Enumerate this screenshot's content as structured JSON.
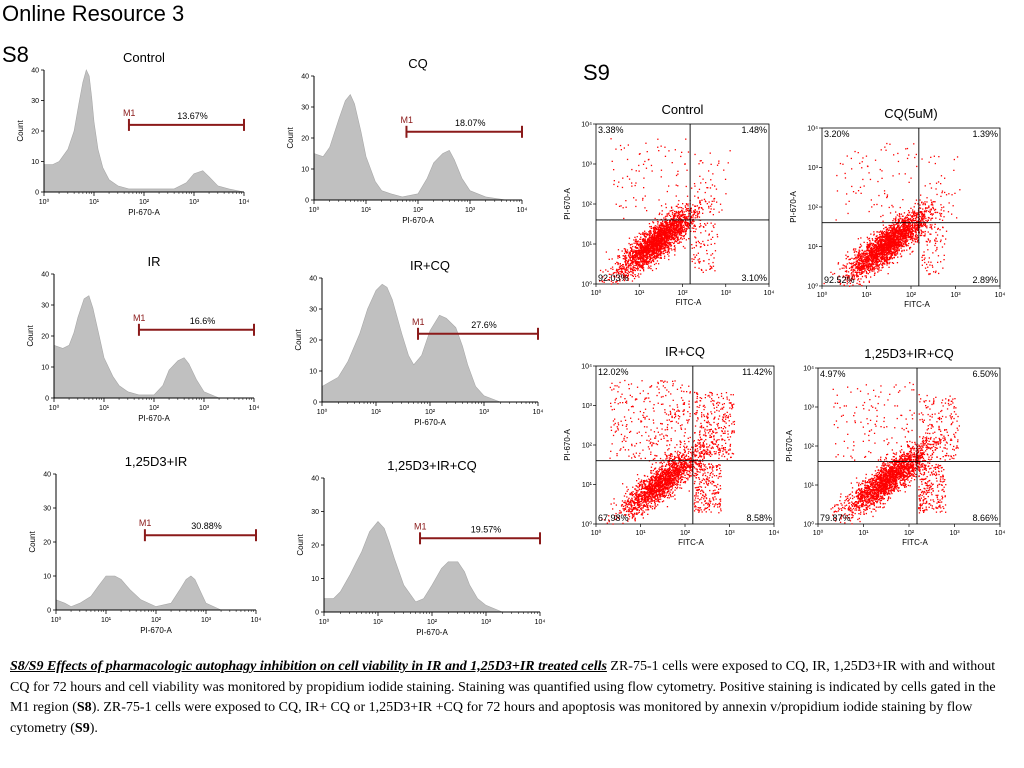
{
  "page": {
    "title": "Online Resource 3",
    "s8_label": "S8",
    "s9_label": "S9"
  },
  "colors": {
    "histogram_fill": "#c0c0c0",
    "marker": "#8b1a1a",
    "dots": "#ff0000",
    "quadrant_line": "#000000",
    "text": "#000000"
  },
  "caption": {
    "lead_label": "S8/S9",
    "lead_title": "Effects of pharmacologic autophagy inhibition on cell viability in IR and 1,25D3+IR treated cells",
    "part1": "ZR-75-1 cells were exposed to CQ,  IR, 1,25D3+IR with and without CQ for 72 hours and cell viability was monitored by propidium iodide staining. Staining was quantified using flow cytometry. Positive staining is indicated by cells gated in the M1 region (",
    "ref1": "S8",
    "part2": "). ZR-75-1 cells were exposed to CQ,  IR+ CQ or 1,25D3+IR +CQ for 72 hours and apoptosis was monitored by annexin v/propidium iodide staining by flow cytometry (",
    "ref2": "S9",
    "part3": ")."
  },
  "chart_data": [
    {
      "type": "area",
      "panel": "S8",
      "title": "Control",
      "xlabel": "PI-670-A",
      "ylabel": "Count",
      "x_scale": "log",
      "xlim": [
        1,
        10000
      ],
      "ylim": [
        0,
        40
      ],
      "xticks": [
        "10⁰",
        "10¹",
        "10²",
        "10³",
        "10⁴"
      ],
      "yticks": [
        "0",
        "10",
        "20",
        "30",
        "40"
      ],
      "marker": {
        "label": "M1",
        "percent": "13.67%",
        "x_range": [
          50,
          10000
        ]
      },
      "x": [
        1,
        1.5,
        2,
        3,
        4,
        5,
        6,
        7,
        8,
        9,
        10,
        12,
        15,
        20,
        30,
        50,
        100,
        200,
        400,
        700,
        1000,
        1500,
        2000,
        3000,
        5000,
        10000
      ],
      "y": [
        9,
        9,
        10,
        14,
        20,
        29,
        36,
        40,
        38,
        31,
        23,
        14,
        8,
        4,
        2,
        1,
        1,
        1,
        1,
        3,
        6,
        7,
        5,
        2,
        1,
        0
      ]
    },
    {
      "type": "area",
      "panel": "S8",
      "title": "CQ",
      "xlabel": "PI-670-A",
      "ylabel": "Count",
      "x_scale": "log",
      "xlim": [
        1,
        10000
      ],
      "ylim": [
        0,
        40
      ],
      "xticks": [
        "10⁰",
        "10¹",
        "10²",
        "10³",
        "10⁴"
      ],
      "yticks": [
        "0",
        "10",
        "20",
        "30",
        "40"
      ],
      "marker": {
        "label": "M1",
        "percent": "18.07%",
        "x_range": [
          60,
          10000
        ]
      },
      "x": [
        1,
        1.5,
        2,
        3,
        4,
        5,
        6,
        8,
        10,
        15,
        20,
        30,
        50,
        100,
        150,
        200,
        300,
        400,
        500,
        700,
        1000,
        2000,
        5000,
        10000
      ],
      "y": [
        15,
        14,
        17,
        26,
        32,
        34,
        31,
        22,
        14,
        6,
        3,
        2,
        1,
        2,
        7,
        12,
        15,
        16,
        13,
        7,
        3,
        1,
        0,
        0
      ]
    },
    {
      "type": "area",
      "panel": "S8",
      "title": "IR",
      "xlabel": "PI-670-A",
      "ylabel": "Count",
      "x_scale": "log",
      "xlim": [
        1,
        10000
      ],
      "ylim": [
        0,
        40
      ],
      "xticks": [
        "10⁰",
        "10¹",
        "10²",
        "10³",
        "10⁴"
      ],
      "yticks": [
        "0",
        "10",
        "20",
        "30",
        "40"
      ],
      "marker": {
        "label": "M1",
        "percent": "16.6%",
        "x_range": [
          50,
          10000
        ]
      },
      "x": [
        1,
        1.5,
        2,
        2.5,
        3,
        4,
        5,
        6,
        8,
        10,
        15,
        20,
        30,
        50,
        100,
        150,
        200,
        300,
        400,
        500,
        700,
        1000,
        2000,
        10000
      ],
      "y": [
        17,
        16,
        17,
        21,
        26,
        32,
        33,
        29,
        20,
        13,
        7,
        4,
        2,
        1,
        1,
        4,
        9,
        12,
        13,
        11,
        6,
        2,
        0,
        0
      ]
    },
    {
      "type": "area",
      "panel": "S8",
      "title": "IR+CQ",
      "xlabel": "PI-670-A",
      "ylabel": "Count",
      "x_scale": "log",
      "xlim": [
        1,
        10000
      ],
      "ylim": [
        0,
        40
      ],
      "xticks": [
        "10⁰",
        "10¹",
        "10²",
        "10³",
        "10⁴"
      ],
      "yticks": [
        "0",
        "10",
        "20",
        "30",
        "40"
      ],
      "marker": {
        "label": "M1",
        "percent": "27.6%",
        "x_range": [
          60,
          10000
        ]
      },
      "x": [
        1,
        2,
        3,
        5,
        7,
        10,
        13,
        16,
        20,
        30,
        40,
        50,
        70,
        100,
        150,
        200,
        300,
        400,
        500,
        700,
        1000,
        2000,
        10000
      ],
      "y": [
        5,
        8,
        13,
        22,
        30,
        36,
        38,
        37,
        33,
        22,
        15,
        12,
        15,
        23,
        28,
        27,
        24,
        18,
        12,
        5,
        2,
        0,
        0
      ]
    },
    {
      "type": "area",
      "panel": "S8",
      "title": "1,25D3+IR",
      "xlabel": "PI-670-A",
      "ylabel": "Count",
      "x_scale": "log",
      "xlim": [
        1,
        10000
      ],
      "ylim": [
        0,
        40
      ],
      "xticks": [
        "10⁰",
        "10¹",
        "10²",
        "10³",
        "10⁴"
      ],
      "yticks": [
        "0",
        "10",
        "20",
        "30",
        "40"
      ],
      "marker": {
        "label": "M1",
        "percent": "30.88%",
        "x_range": [
          60,
          10000
        ]
      },
      "x": [
        1,
        1.5,
        2,
        3,
        5,
        7,
        10,
        15,
        20,
        30,
        50,
        100,
        200,
        300,
        400,
        500,
        600,
        800,
        1000,
        2000,
        10000
      ],
      "y": [
        3,
        2,
        1,
        2,
        4,
        7,
        10,
        10,
        9,
        6,
        3,
        1,
        2,
        6,
        9,
        10,
        9,
        5,
        2,
        0,
        0
      ]
    },
    {
      "type": "area",
      "panel": "S8",
      "title": "1,25D3+IR+CQ",
      "xlabel": "PI-670-A",
      "ylabel": "Count",
      "x_scale": "log",
      "xlim": [
        1,
        10000
      ],
      "ylim": [
        0,
        40
      ],
      "xticks": [
        "10⁰",
        "10¹",
        "10²",
        "10³",
        "10⁴"
      ],
      "yticks": [
        "0",
        "10",
        "20",
        "30",
        "40"
      ],
      "marker": {
        "label": "M1",
        "percent": "19.57%",
        "x_range": [
          60,
          10000
        ]
      },
      "x": [
        1,
        1.5,
        2,
        3,
        4,
        5,
        7,
        10,
        13,
        16,
        20,
        30,
        50,
        70,
        100,
        150,
        200,
        300,
        400,
        500,
        700,
        1000,
        2000,
        10000
      ],
      "y": [
        4,
        4,
        6,
        11,
        15,
        18,
        24,
        27,
        25,
        21,
        16,
        8,
        3,
        4,
        8,
        13,
        15,
        15,
        12,
        8,
        4,
        2,
        0,
        0
      ]
    },
    {
      "type": "scatter",
      "panel": "S9",
      "title": "Control",
      "xlabel": "FITC-A",
      "ylabel": "PI-670-A",
      "x_scale": "log",
      "y_scale": "log",
      "xlim": [
        1,
        10000
      ],
      "ylim": [
        1,
        10000
      ],
      "xticks": [
        "10⁰",
        "10¹",
        "10²",
        "10³",
        "10⁴"
      ],
      "yticks": [
        "10⁰",
        "10¹",
        "10²",
        "10³",
        "10⁴"
      ],
      "quadrants": {
        "upper_left": "3.38%",
        "upper_right": "1.48%",
        "lower_left": "92.03%",
        "lower_right": "3.10%"
      },
      "gate": {
        "x": 150,
        "y": 40
      },
      "population_center": {
        "x": 25,
        "y": 12
      }
    },
    {
      "type": "scatter",
      "panel": "S9",
      "title": "CQ(5uM)",
      "xlabel": "FITC-A",
      "ylabel": "PI-670-A",
      "x_scale": "log",
      "y_scale": "log",
      "xlim": [
        1,
        10000
      ],
      "ylim": [
        1,
        10000
      ],
      "xticks": [
        "10⁰",
        "10¹",
        "10²",
        "10³",
        "10⁴"
      ],
      "yticks": [
        "10⁰",
        "10¹",
        "10²",
        "10³",
        "10⁴"
      ],
      "quadrants": {
        "upper_left": "3.20%",
        "upper_right": "1.39%",
        "lower_left": "92.52%",
        "lower_right": "2.89%"
      },
      "gate": {
        "x": 150,
        "y": 40
      },
      "population_center": {
        "x": 30,
        "y": 12
      }
    },
    {
      "type": "scatter",
      "panel": "S9",
      "title": "IR+CQ",
      "xlabel": "FITC-A",
      "ylabel": "PI-670-A",
      "x_scale": "log",
      "y_scale": "log",
      "xlim": [
        1,
        10000
      ],
      "ylim": [
        1,
        10000
      ],
      "xticks": [
        "10⁰",
        "10¹",
        "10²",
        "10³",
        "10⁴"
      ],
      "yticks": [
        "10⁰",
        "10¹",
        "10²",
        "10³",
        "10⁴"
      ],
      "quadrants": {
        "upper_left": "12.02%",
        "upper_right": "11.42%",
        "lower_left": "67.98%",
        "lower_right": "8.58%"
      },
      "gate": {
        "x": 150,
        "y": 40
      },
      "population_center": {
        "x": 30,
        "y": 12
      }
    },
    {
      "type": "scatter",
      "panel": "S9",
      "title": "1,25D3+IR+CQ",
      "xlabel": "FITC-A",
      "ylabel": "PI-670-A",
      "x_scale": "log",
      "y_scale": "log",
      "xlim": [
        1,
        10000
      ],
      "ylim": [
        1,
        10000
      ],
      "xticks": [
        "10⁰",
        "10¹",
        "10²",
        "10³",
        "10⁴"
      ],
      "yticks": [
        "10⁰",
        "10¹",
        "10²",
        "10³",
        "10⁴"
      ],
      "quadrants": {
        "upper_left": "4.97%",
        "upper_right": "6.50%",
        "lower_left": "79.87%",
        "lower_right": "8.66%"
      },
      "gate": {
        "x": 150,
        "y": 40
      },
      "population_center": {
        "x": 35,
        "y": 15
      }
    }
  ]
}
